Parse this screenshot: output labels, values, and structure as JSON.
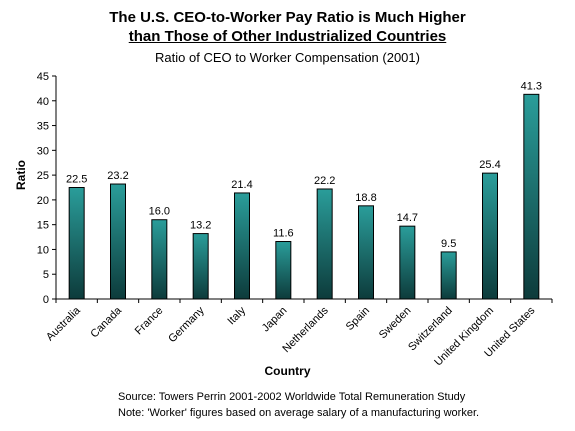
{
  "chart_data": {
    "type": "bar",
    "title_line1": "The U.S. CEO-to-Worker Pay Ratio is Much Higher",
    "title_line2": "than Those of Other Industrialized Countries",
    "subtitle": "Ratio of CEO to Worker Compensation (2001)",
    "xlabel": "Country",
    "ylabel": "Ratio",
    "ylim": [
      0,
      45
    ],
    "yticks": [
      0,
      5,
      10,
      15,
      20,
      25,
      30,
      35,
      40,
      45
    ],
    "categories": [
      "Australia",
      "Canada",
      "France",
      "Germany",
      "Italy",
      "Japan",
      "Netherlands",
      "Spain",
      "Sweden",
      "Switzerland",
      "United Kingdom",
      "United States"
    ],
    "values": [
      22.5,
      23.2,
      16.0,
      13.2,
      21.4,
      11.6,
      22.2,
      18.8,
      14.7,
      9.5,
      25.4,
      41.3
    ],
    "value_labels": [
      "22.5",
      "23.2",
      "16.0",
      "13.2",
      "21.4",
      "11.6",
      "22.2",
      "18.8",
      "14.7",
      "9.5",
      "25.4",
      "41.3"
    ],
    "bar_color_top": "#2a9d9a",
    "bar_color_bottom": "#0d3b3b",
    "grid": false,
    "legend": "none"
  },
  "notes": {
    "source": "Source: Towers Perrin 2001-2002 Worldwide Total Remuneration Study",
    "note": "Note: 'Worker' figures based on average salary of a manufacturing worker."
  }
}
